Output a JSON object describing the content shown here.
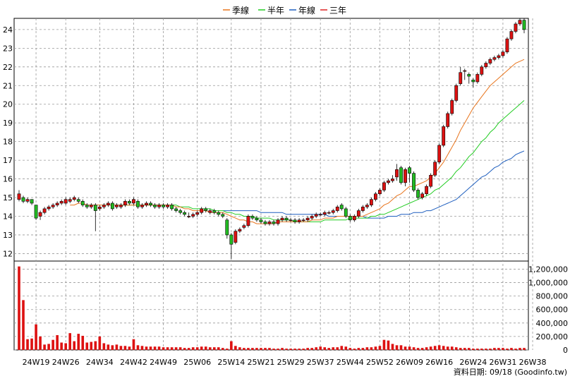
{
  "legend": [
    {
      "name": "季線",
      "color": "#e8741c"
    },
    {
      "name": "半年",
      "color": "#22cc22"
    },
    {
      "name": "年線",
      "color": "#1f5fbf"
    },
    {
      "name": "三年",
      "color": "#dd2222"
    }
  ],
  "footer": "資料日期: 09/18 (Goodinfo.tw)",
  "chart_data": {
    "type": "candlestick",
    "price_axis": {
      "ticks": [
        12,
        13,
        14,
        15,
        16,
        17,
        18,
        19,
        20,
        21,
        22,
        23,
        24
      ],
      "ylim": [
        11.6,
        24.6
      ]
    },
    "volume_axis": {
      "ticks": [
        "0",
        "200,000",
        "400,000",
        "600,000",
        "800,000",
        "1,000,000",
        "1,200,000"
      ],
      "ylim": [
        0,
        1320000
      ]
    },
    "x_ticks": [
      "24W19",
      "24W26",
      "24W34",
      "24W42",
      "24W49",
      "25W06",
      "25W14",
      "25W21",
      "25W29",
      "25W37",
      "25W44",
      "25W52",
      "26W09",
      "26W16",
      "26W24",
      "26W31",
      "26W38"
    ],
    "x_tick_index": [
      4,
      11,
      19,
      27,
      34,
      42,
      50,
      57,
      64,
      71,
      78,
      85,
      92,
      99,
      107,
      114,
      121
    ],
    "up_color": "#dd1111",
    "down_color": "#22bb22",
    "volume_color": "#dd1111",
    "grid": true,
    "candles_close": [
      15.2,
      14.8,
      14.9,
      14.7,
      13.9,
      14.2,
      14.4,
      14.5,
      14.6,
      14.7,
      14.8,
      14.9,
      14.9,
      15.0,
      14.8,
      14.6,
      14.5,
      14.6,
      14.3,
      14.5,
      14.6,
      14.7,
      14.4,
      14.6,
      14.6,
      14.8,
      14.7,
      14.9,
      14.5,
      14.6,
      14.7,
      14.6,
      14.5,
      14.6,
      14.5,
      14.6,
      14.4,
      14.3,
      14.2,
      14.1,
      14.0,
      14.1,
      14.2,
      14.4,
      14.3,
      14.3,
      14.2,
      14.1,
      14.0,
      13.0,
      12.5,
      13.2,
      13.3,
      13.5,
      14.0,
      13.9,
      13.8,
      13.7,
      13.6,
      13.7,
      13.6,
      13.8,
      13.9,
      13.8,
      13.8,
      13.7,
      13.8,
      13.8,
      13.9,
      14.0,
      14.1,
      14.1,
      14.2,
      14.2,
      14.3,
      14.5,
      14.4,
      14.0,
      13.8,
      14.0,
      14.3,
      14.5,
      14.6,
      14.9,
      15.2,
      15.4,
      15.8,
      15.9,
      16.0,
      16.5,
      15.8,
      16.5,
      16.3,
      15.4,
      15.0,
      15.2,
      15.6,
      16.2,
      16.9,
      17.8,
      18.8,
      19.5,
      20.2,
      21.0,
      21.7,
      21.8,
      21.5,
      21.2,
      21.6,
      22.0,
      22.2,
      22.4,
      22.5,
      22.6,
      22.8,
      23.5,
      23.9,
      24.3,
      24.5,
      24.0
    ],
    "candles_open": [
      14.9,
      15.0,
      14.8,
      14.9,
      14.6,
      14.0,
      14.2,
      14.4,
      14.5,
      14.6,
      14.7,
      14.7,
      14.8,
      14.9,
      14.9,
      14.8,
      14.6,
      14.5,
      14.6,
      14.4,
      14.5,
      14.6,
      14.7,
      14.5,
      14.5,
      14.6,
      14.8,
      14.7,
      14.8,
      14.5,
      14.6,
      14.7,
      14.6,
      14.5,
      14.6,
      14.5,
      14.6,
      14.4,
      14.3,
      14.2,
      14.0,
      14.0,
      14.1,
      14.2,
      14.4,
      14.2,
      14.3,
      14.2,
      14.1,
      13.8,
      13.0,
      12.6,
      13.2,
      13.4,
      13.5,
      14.0,
      13.9,
      13.8,
      13.7,
      13.6,
      13.7,
      13.6,
      13.8,
      13.9,
      13.8,
      13.8,
      13.7,
      13.8,
      13.8,
      13.9,
      14.0,
      14.1,
      14.1,
      14.2,
      14.2,
      14.3,
      14.6,
      14.4,
      14.0,
      13.8,
      14.0,
      14.3,
      14.5,
      14.6,
      14.9,
      15.2,
      15.4,
      15.8,
      15.9,
      16.1,
      16.6,
      15.8,
      16.6,
      16.3,
      15.4,
      15.0,
      15.2,
      15.6,
      16.2,
      16.9,
      17.8,
      18.8,
      19.5,
      20.2,
      21.1,
      21.8,
      21.6,
      21.3,
      21.2,
      21.6,
      22.0,
      22.2,
      22.4,
      22.5,
      22.6,
      22.8,
      23.5,
      23.9,
      24.3,
      24.5
    ],
    "candles_high": [
      15.4,
      15.1,
      15.0,
      14.9,
      14.6,
      14.3,
      14.5,
      14.6,
      14.7,
      14.8,
      14.9,
      15.0,
      15.0,
      15.1,
      15.0,
      14.9,
      14.7,
      14.7,
      14.7,
      14.6,
      14.7,
      14.8,
      14.8,
      14.7,
      14.7,
      14.9,
      14.9,
      15.0,
      14.9,
      14.7,
      14.8,
      14.8,
      14.7,
      14.7,
      14.7,
      14.7,
      14.7,
      14.5,
      14.4,
      14.3,
      14.2,
      14.2,
      14.3,
      14.5,
      14.5,
      14.4,
      14.4,
      14.3,
      14.2,
      13.9,
      13.1,
      13.3,
      13.4,
      13.6,
      14.1,
      14.1,
      14.0,
      13.9,
      13.8,
      13.8,
      13.8,
      13.9,
      14.0,
      14.0,
      13.9,
      13.9,
      13.9,
      13.9,
      14.0,
      14.1,
      14.2,
      14.2,
      14.3,
      14.3,
      14.4,
      14.6,
      14.7,
      14.5,
      14.1,
      14.1,
      14.4,
      14.6,
      14.7,
      15.0,
      15.3,
      15.5,
      15.9,
      16.0,
      16.2,
      16.8,
      16.7,
      16.6,
      16.7,
      16.4,
      15.5,
      15.3,
      15.7,
      16.3,
      17.0,
      17.9,
      18.9,
      19.6,
      20.3,
      21.1,
      22.0,
      21.9,
      21.7,
      21.4,
      21.7,
      22.1,
      22.3,
      22.5,
      22.6,
      22.7,
      22.9,
      23.6,
      24.0,
      24.4,
      24.6,
      24.6
    ],
    "candles_low": [
      14.8,
      14.7,
      14.7,
      14.6,
      13.8,
      13.8,
      14.1,
      14.3,
      14.4,
      14.5,
      14.6,
      14.6,
      14.7,
      14.8,
      14.7,
      14.5,
      14.4,
      14.4,
      13.2,
      14.3,
      14.4,
      14.5,
      14.3,
      14.4,
      14.4,
      14.5,
      14.6,
      14.6,
      14.4,
      14.4,
      14.5,
      14.5,
      14.4,
      14.4,
      14.4,
      14.4,
      14.3,
      14.2,
      14.1,
      14.0,
      13.9,
      13.9,
      14.0,
      14.1,
      14.2,
      14.1,
      14.1,
      14.0,
      13.9,
      12.8,
      11.7,
      12.5,
      13.1,
      13.3,
      13.4,
      13.8,
      13.7,
      13.6,
      13.5,
      13.5,
      13.5,
      13.5,
      13.7,
      13.7,
      13.7,
      13.6,
      13.6,
      13.7,
      13.7,
      13.8,
      13.9,
      14.0,
      14.0,
      14.1,
      14.1,
      14.2,
      14.3,
      13.9,
      13.7,
      13.7,
      13.9,
      14.2,
      14.4,
      14.5,
      14.8,
      15.1,
      15.3,
      15.7,
      15.8,
      15.9,
      15.7,
      15.6,
      15.8,
      15.3,
      14.9,
      14.9,
      15.1,
      15.5,
      16.1,
      16.8,
      17.7,
      18.7,
      19.4,
      20.1,
      21.0,
      21.3,
      21.1,
      20.9,
      21.1,
      21.5,
      21.9,
      22.1,
      22.3,
      22.4,
      22.5,
      22.7,
      23.4,
      23.8,
      24.2,
      23.8
    ],
    "volume": [
      1240000,
      740000,
      160000,
      170000,
      380000,
      200000,
      80000,
      90000,
      150000,
      220000,
      110000,
      100000,
      250000,
      130000,
      240000,
      210000,
      110000,
      120000,
      130000,
      200000,
      100000,
      80000,
      70000,
      80000,
      60000,
      60000,
      50000,
      160000,
      70000,
      60000,
      50000,
      50000,
      50000,
      50000,
      40000,
      40000,
      40000,
      40000,
      40000,
      30000,
      30000,
      40000,
      40000,
      50000,
      50000,
      40000,
      40000,
      40000,
      30000,
      20000,
      130000,
      60000,
      40000,
      30000,
      30000,
      30000,
      30000,
      30000,
      30000,
      30000,
      20000,
      20000,
      30000,
      20000,
      20000,
      20000,
      20000,
      20000,
      30000,
      30000,
      40000,
      50000,
      40000,
      30000,
      40000,
      40000,
      60000,
      50000,
      30000,
      20000,
      30000,
      30000,
      40000,
      40000,
      50000,
      60000,
      150000,
      140000,
      90000,
      70000,
      70000,
      50000,
      50000,
      40000,
      30000,
      30000,
      40000,
      50000,
      60000,
      70000,
      60000,
      50000,
      50000,
      40000,
      30000,
      30000,
      30000,
      20000,
      20000,
      20000,
      20000,
      20000,
      30000,
      30000,
      30000,
      20000,
      30000,
      20000,
      30000,
      30000
    ],
    "ma_quarter": [
      null,
      null,
      null,
      null,
      null,
      null,
      null,
      null,
      null,
      null,
      null,
      null,
      14.6,
      14.6,
      14.7,
      14.7,
      14.6,
      14.6,
      14.6,
      14.6,
      14.6,
      14.6,
      14.6,
      14.6,
      14.6,
      14.6,
      14.6,
      14.6,
      14.6,
      14.6,
      14.6,
      14.6,
      14.6,
      14.6,
      14.6,
      14.6,
      14.6,
      14.5,
      14.5,
      14.4,
      14.4,
      14.3,
      14.3,
      14.3,
      14.3,
      14.2,
      14.2,
      14.2,
      14.2,
      14.1,
      14.0,
      13.9,
      13.8,
      13.8,
      13.7,
      13.7,
      13.6,
      13.6,
      13.6,
      13.6,
      13.6,
      13.7,
      13.7,
      13.7,
      13.7,
      13.7,
      13.7,
      13.7,
      13.7,
      13.8,
      13.8,
      13.8,
      13.9,
      13.9,
      13.9,
      14.0,
      14.0,
      14.0,
      14.0,
      14.0,
      14.0,
      14.0,
      14.1,
      14.2,
      14.3,
      14.4,
      14.6,
      14.7,
      14.9,
      15.1,
      15.2,
      15.4,
      15.6,
      15.6,
      15.7,
      15.8,
      15.9,
      16.1,
      16.3,
      16.6,
      16.9,
      17.3,
      17.7,
      18.1,
      18.6,
      19.0,
      19.4,
      19.8,
      20.1,
      20.4,
      20.7,
      21.0,
      21.2,
      21.4,
      21.6,
      21.8,
      22.0,
      22.2,
      22.3,
      22.4
    ],
    "ma_half": [
      null,
      null,
      null,
      null,
      null,
      null,
      null,
      null,
      null,
      null,
      null,
      null,
      null,
      null,
      null,
      null,
      null,
      null,
      null,
      null,
      null,
      null,
      null,
      null,
      14.6,
      14.6,
      14.6,
      14.6,
      14.6,
      14.6,
      14.6,
      14.6,
      14.6,
      14.6,
      14.6,
      14.6,
      14.6,
      14.6,
      14.5,
      14.5,
      14.5,
      14.4,
      14.4,
      14.4,
      14.4,
      14.4,
      14.3,
      14.3,
      14.3,
      14.2,
      14.2,
      14.1,
      14.1,
      14.0,
      14.0,
      14.0,
      13.9,
      13.9,
      13.9,
      13.9,
      13.8,
      13.8,
      13.8,
      13.8,
      13.8,
      13.7,
      13.7,
      13.7,
      13.7,
      13.7,
      13.7,
      13.7,
      13.8,
      13.8,
      13.8,
      13.8,
      13.8,
      13.8,
      13.9,
      13.9,
      13.9,
      13.9,
      13.9,
      14.0,
      14.0,
      14.1,
      14.1,
      14.2,
      14.3,
      14.4,
      14.5,
      14.6,
      14.7,
      14.8,
      14.9,
      15.0,
      15.1,
      15.2,
      15.4,
      15.5,
      15.7,
      15.9,
      16.1,
      16.4,
      16.6,
      16.9,
      17.2,
      17.4,
      17.7,
      18.0,
      18.2,
      18.5,
      18.7,
      19.0,
      19.2,
      19.4,
      19.6,
      19.8,
      20.0,
      20.2
    ],
    "ma_year": [
      null,
      null,
      null,
      null,
      null,
      null,
      null,
      null,
      null,
      null,
      null,
      null,
      null,
      null,
      null,
      null,
      null,
      null,
      null,
      null,
      null,
      null,
      null,
      null,
      null,
      null,
      null,
      null,
      null,
      null,
      null,
      null,
      null,
      null,
      null,
      null,
      null,
      null,
      null,
      null,
      null,
      null,
      null,
      null,
      null,
      null,
      null,
      null,
      14.3,
      14.3,
      14.3,
      14.3,
      14.3,
      14.3,
      14.3,
      14.3,
      14.3,
      14.2,
      14.2,
      14.2,
      14.2,
      14.2,
      14.2,
      14.1,
      14.1,
      14.1,
      14.1,
      14.1,
      14.1,
      14.1,
      14.1,
      14.1,
      14.1,
      14.0,
      14.0,
      14.0,
      14.0,
      14.0,
      14.0,
      14.0,
      14.0,
      14.0,
      13.9,
      13.9,
      13.9,
      13.9,
      13.9,
      14.0,
      14.0,
      14.0,
      14.1,
      14.1,
      14.1,
      14.2,
      14.2,
      14.2,
      14.3,
      14.3,
      14.4,
      14.5,
      14.6,
      14.7,
      14.8,
      14.9,
      15.1,
      15.3,
      15.5,
      15.7,
      15.9,
      16.1,
      16.2,
      16.4,
      16.6,
      16.7,
      16.9,
      17.0,
      17.1,
      17.3,
      17.4,
      17.5
    ]
  }
}
